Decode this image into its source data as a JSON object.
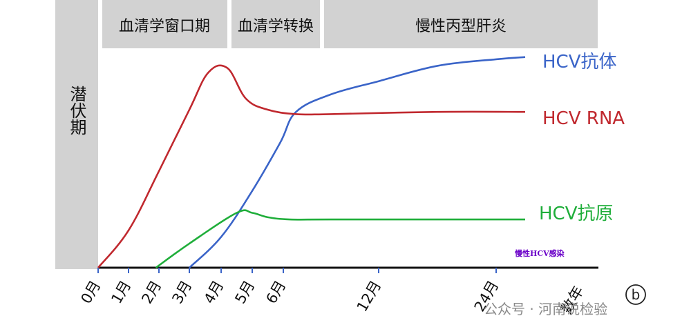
{
  "chart_data": {
    "type": "line",
    "phases": [
      {
        "label": "潜伏期",
        "start": 0,
        "end": 0
      },
      {
        "label": "血清学窗口期",
        "start": 0,
        "end": 4.5
      },
      {
        "label": "血清学转换",
        "start": 4.5,
        "end": 7.5
      },
      {
        "label": "慢性丙型肝炎",
        "start": 7.5,
        "end": 36
      }
    ],
    "x_ticks": [
      {
        "label": "0月",
        "value": 0
      },
      {
        "label": "1月",
        "value": 1
      },
      {
        "label": "2月",
        "value": 2
      },
      {
        "label": "3月",
        "value": 3
      },
      {
        "label": "4月",
        "value": 4
      },
      {
        "label": "5月",
        "value": 5
      },
      {
        "label": "6月",
        "value": 6
      },
      {
        "label": "12月",
        "value": 12
      },
      {
        "label": "24月",
        "value": 24
      },
      {
        "label": "数年",
        "value": 36
      }
    ],
    "series": [
      {
        "name": "HCV抗体",
        "color": "#3a64c8",
        "points": [
          [
            3,
            0
          ],
          [
            4,
            0.14
          ],
          [
            5,
            0.35
          ],
          [
            5.9,
            0.57
          ],
          [
            6.8,
            0.71
          ],
          [
            9,
            0.79
          ],
          [
            12,
            0.85
          ],
          [
            18,
            0.92
          ],
          [
            24,
            0.95
          ],
          [
            31,
            0.96
          ]
        ]
      },
      {
        "name": "HCV RNA",
        "color": "#c0282e",
        "points": [
          [
            0,
            0
          ],
          [
            1,
            0.17
          ],
          [
            2,
            0.44
          ],
          [
            3,
            0.72
          ],
          [
            3.6,
            0.89
          ],
          [
            4.2,
            0.91
          ],
          [
            4.8,
            0.77
          ],
          [
            5.5,
            0.72
          ],
          [
            6.8,
            0.7
          ],
          [
            9,
            0.7
          ],
          [
            18,
            0.71
          ],
          [
            31,
            0.71
          ]
        ]
      },
      {
        "name": "HCV抗原",
        "color": "#1fae3a",
        "points": [
          [
            1.9,
            0
          ],
          [
            3,
            0.11
          ],
          [
            4.5,
            0.25
          ],
          [
            5,
            0.25
          ],
          [
            5.5,
            0.23
          ],
          [
            6.4,
            0.22
          ],
          [
            9,
            0.22
          ],
          [
            18,
            0.22
          ],
          [
            31,
            0.22
          ]
        ]
      }
    ],
    "xlabel": "",
    "ylabel": "",
    "grid": false
  },
  "annotations": {
    "note": "慢性HCV感染",
    "watermark": "公众号 · 河南说检验",
    "badge": "b"
  }
}
